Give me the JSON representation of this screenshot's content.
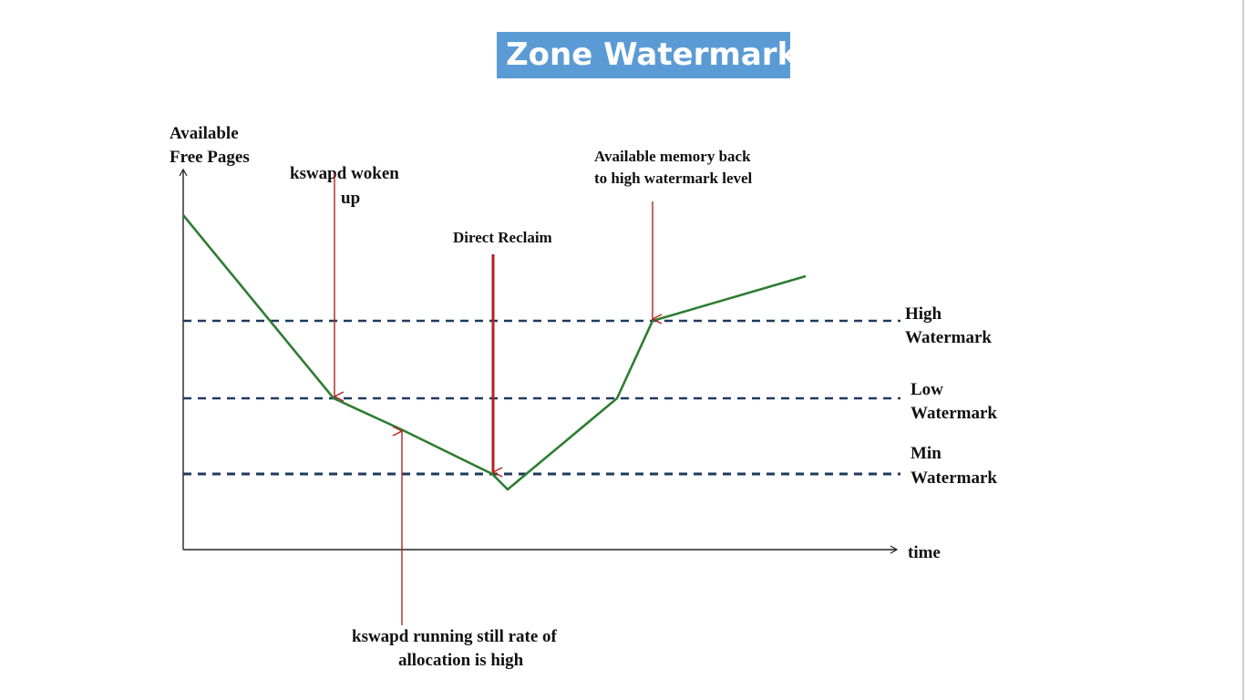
{
  "title": "Zone Watermark",
  "axes": {
    "y_label": [
      "Available",
      "Free Pages"
    ],
    "x_label": "time"
  },
  "watermarks": {
    "high": [
      "High",
      "Watermark"
    ],
    "low": [
      "Low",
      "Watermark"
    ],
    "min": [
      "Min",
      "Watermark"
    ]
  },
  "annotations": {
    "kswapd_woken": [
      "kswapd woken",
      "up"
    ],
    "direct_reclaim": "Direct Reclaim",
    "back_to_high": [
      "Available memory back",
      "to high watermark level"
    ],
    "kswapd_running": [
      "kswapd running still rate of",
      "allocation is high"
    ]
  },
  "colors": {
    "title_bg": "#5b9bd5",
    "curve": "#2e7d32",
    "arrow": "#b22222",
    "dashed": "#1f3b5a"
  }
}
